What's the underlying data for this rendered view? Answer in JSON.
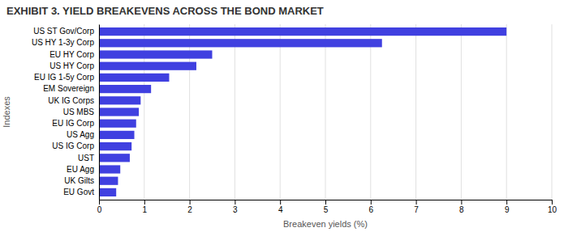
{
  "chart_data": {
    "type": "bar",
    "orientation": "horizontal",
    "title": "EXHIBIT 3. YIELD BREAKEVENS ACROSS THE BOND MARKET",
    "xlabel": "Breakeven yields (%)",
    "ylabel": "Indexes",
    "categories": [
      "EU Govt",
      "UK Gilts",
      "EU Agg",
      "UST",
      "US IG Corp",
      "US Agg",
      "EU IG Corp",
      "US MBS",
      "UK IG Corps",
      "EM Sovereign",
      "EU IG 1-5y Corp",
      "US HY Corp",
      "EU HY Corp",
      "US HY 1-3y Corp",
      "US ST Gov/Corp"
    ],
    "values": [
      0.38,
      0.42,
      0.47,
      0.68,
      0.72,
      0.78,
      0.82,
      0.88,
      0.92,
      1.15,
      1.55,
      2.15,
      2.5,
      6.25,
      9.0
    ],
    "color": "#4040e0",
    "xlim": [
      0,
      10
    ],
    "xticks": [
      0,
      1,
      2,
      3,
      4,
      5,
      6,
      7,
      8,
      9,
      10
    ],
    "grid": true
  }
}
